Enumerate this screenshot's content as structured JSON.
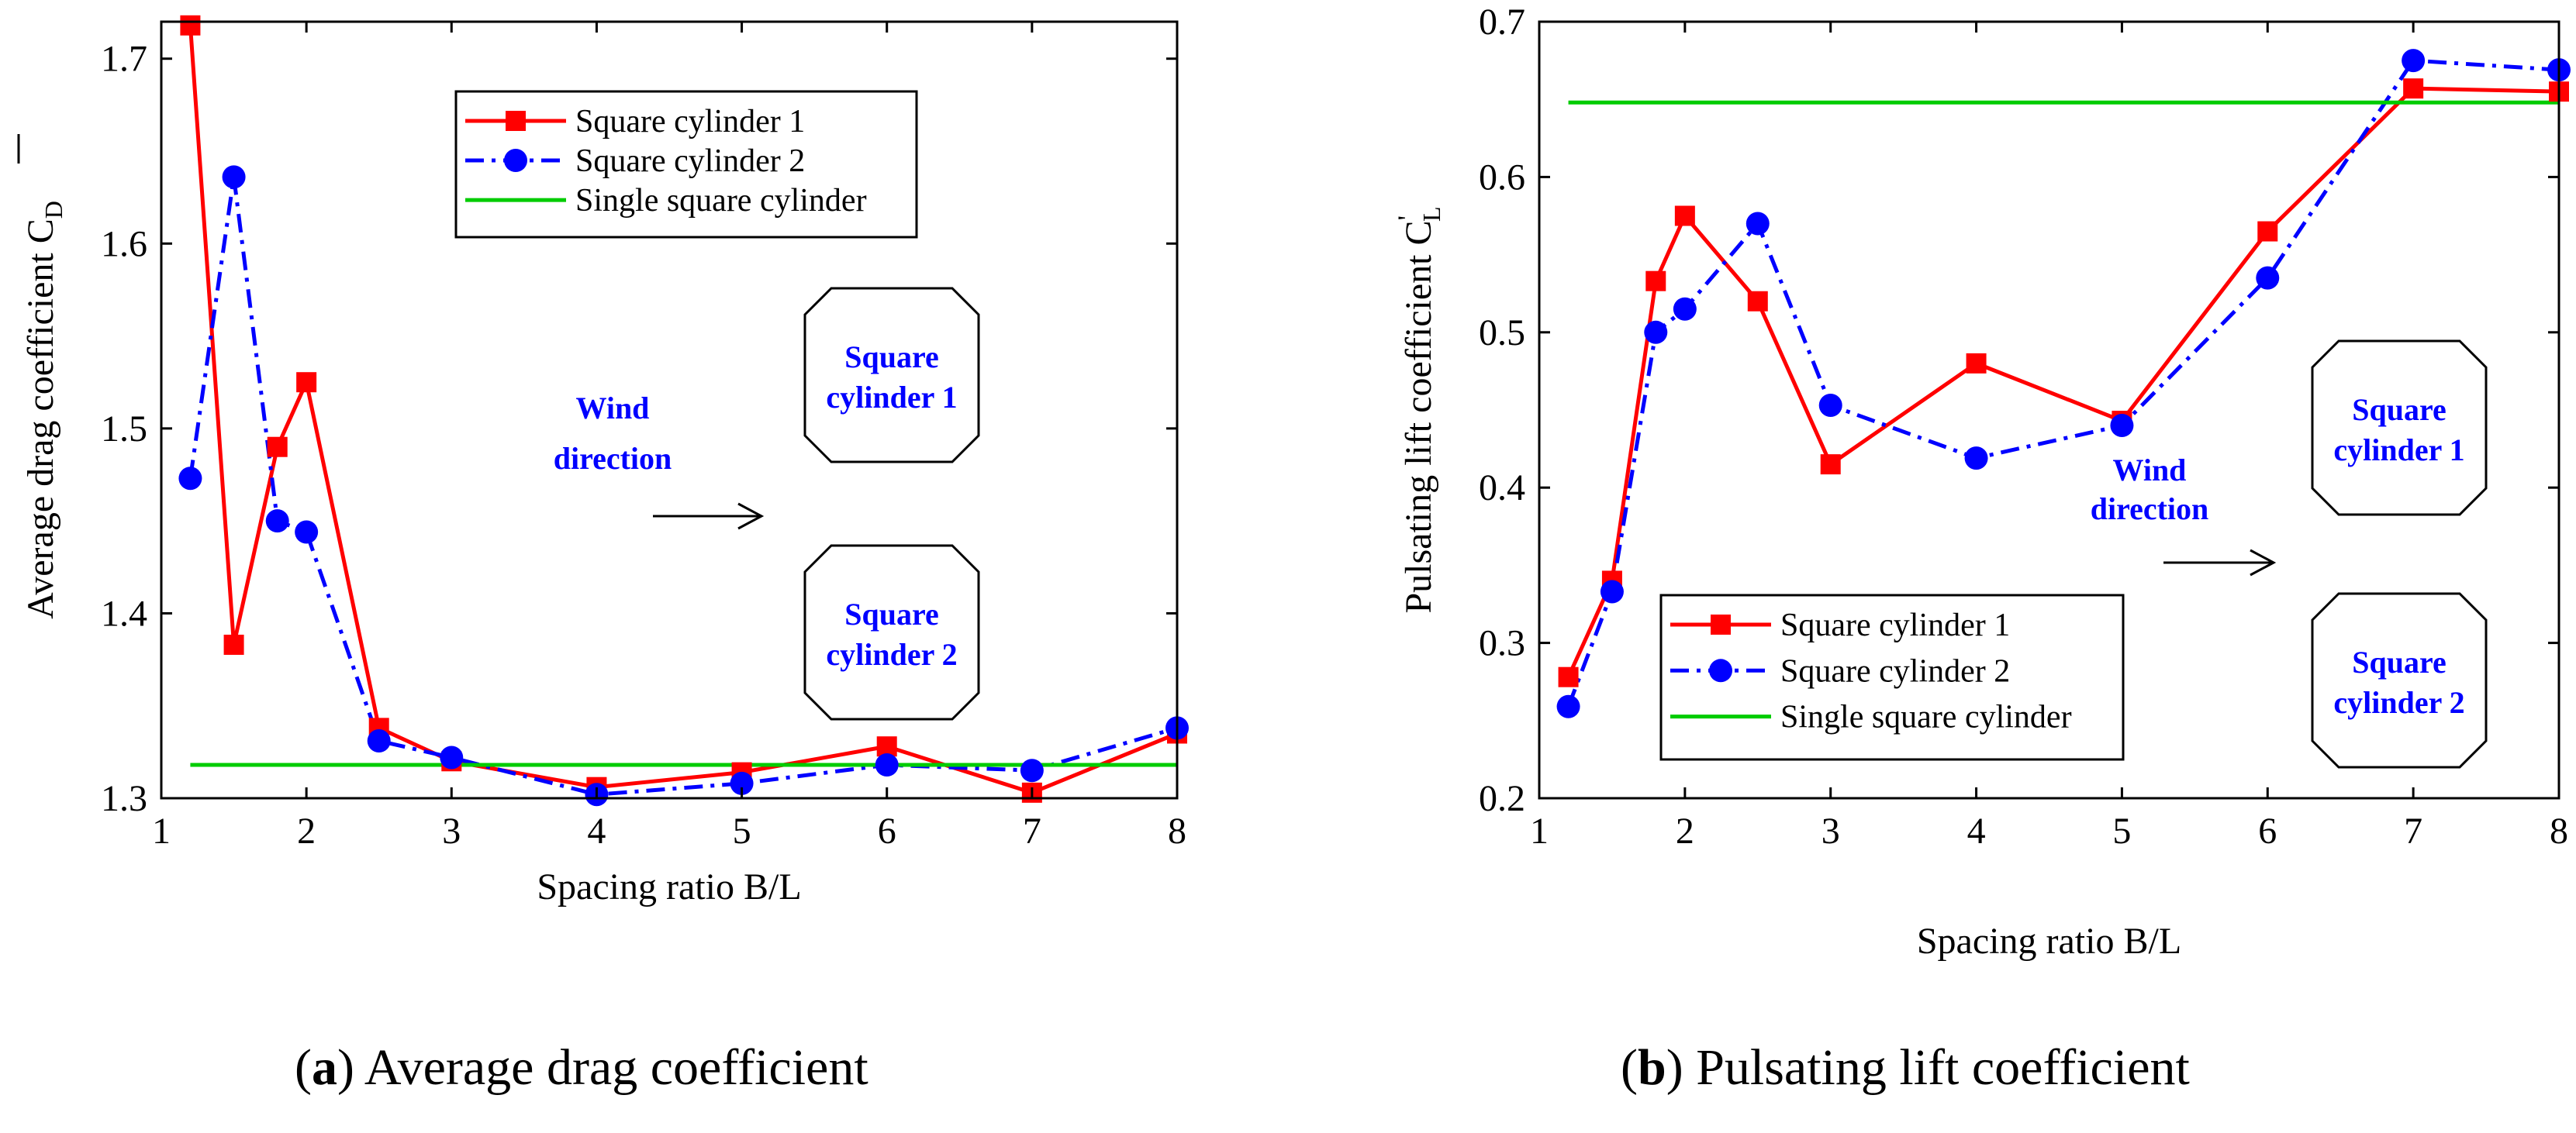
{
  "chart_data": [
    {
      "type": "line",
      "title": "",
      "xlabel": "Spacing ratio B/L",
      "ylabel": "Average drag coefficient C",
      "ylabel_sub": "D",
      "ylabel_overbar": true,
      "xlim": [
        1,
        8
      ],
      "ylim": [
        1.3,
        1.72
      ],
      "xticks": [
        1,
        2,
        3,
        4,
        5,
        6,
        7,
        8
      ],
      "yticks": [
        1.3,
        1.4,
        1.5,
        1.6,
        1.7
      ],
      "yticklabels": [
        "1.3",
        "1.4",
        "1.5",
        "1.6",
        "1.7"
      ],
      "grid": false,
      "legend_position": "top-center",
      "series": [
        {
          "name": "Square cylinder 1",
          "color": "#ff0000",
          "marker": "square",
          "style": "solid",
          "x": [
            1.2,
            1.5,
            1.8,
            2.0,
            2.5,
            3,
            4,
            5,
            6,
            7,
            8
          ],
          "y": [
            1.718,
            1.383,
            1.49,
            1.525,
            1.338,
            1.32,
            1.306,
            1.314,
            1.328,
            1.303,
            1.335
          ]
        },
        {
          "name": "Square cylinder 2",
          "color": "#0000ff",
          "marker": "circle",
          "style": "dashdot",
          "x": [
            1.2,
            1.5,
            1.8,
            2.0,
            2.5,
            3,
            4,
            5,
            6,
            7,
            8
          ],
          "y": [
            1.473,
            1.636,
            1.45,
            1.444,
            1.331,
            1.322,
            1.302,
            1.308,
            1.318,
            1.315,
            1.338
          ]
        },
        {
          "name": "Single square cylinder",
          "color": "#00cc00",
          "marker": "none",
          "style": "solid",
          "x": [
            1.2,
            8
          ],
          "y": [
            1.318,
            1.318
          ]
        }
      ],
      "annotations": {
        "box1": [
          "Square",
          "cylinder 1"
        ],
        "box2": [
          "Square",
          "cylinder 2"
        ],
        "wind": [
          "Wind",
          "direction"
        ]
      },
      "caption_letter": "a",
      "caption_text": "Average drag coefficient"
    },
    {
      "type": "line",
      "title": "",
      "xlabel": "Spacing ratio B/L",
      "ylabel": "Pulsating lift coefficient C",
      "ylabel_sub": "L",
      "ylabel_sup": "'",
      "ylabel_overbar": false,
      "xlim": [
        1,
        8
      ],
      "ylim": [
        0.2,
        0.7
      ],
      "xticks": [
        1,
        2,
        3,
        4,
        5,
        6,
        7,
        8
      ],
      "yticks": [
        0.2,
        0.3,
        0.4,
        0.5,
        0.6,
        0.7
      ],
      "yticklabels": [
        "0.2",
        "0.3",
        "0.4",
        "0.5",
        "0.6",
        "0.7"
      ],
      "grid": false,
      "legend_position": "bottom-left",
      "series": [
        {
          "name": "Square cylinder 1",
          "color": "#ff0000",
          "marker": "square",
          "style": "solid",
          "x": [
            1.2,
            1.5,
            1.8,
            2.0,
            2.5,
            3,
            4,
            5,
            6,
            7,
            8
          ],
          "y": [
            0.278,
            0.34,
            0.533,
            0.575,
            0.52,
            0.415,
            0.48,
            0.443,
            0.565,
            0.657,
            0.655
          ]
        },
        {
          "name": "Square cylinder 2",
          "color": "#0000ff",
          "marker": "circle",
          "style": "dashdot",
          "x": [
            1.2,
            1.5,
            1.8,
            2.0,
            2.5,
            3,
            4,
            5,
            6,
            7,
            8
          ],
          "y": [
            0.259,
            0.333,
            0.5,
            0.515,
            0.57,
            0.453,
            0.419,
            0.44,
            0.535,
            0.675,
            0.669
          ]
        },
        {
          "name": "Single square cylinder",
          "color": "#00cc00",
          "marker": "none",
          "style": "solid",
          "x": [
            1.2,
            8
          ],
          "y": [
            0.648,
            0.648
          ]
        }
      ],
      "annotations": {
        "box1": [
          "Square",
          "cylinder 1"
        ],
        "box2": [
          "Square",
          "cylinder 2"
        ],
        "wind": [
          "Wind",
          "direction"
        ]
      },
      "caption_letter": "b",
      "caption_text": "Pulsating lift coefficient"
    }
  ]
}
